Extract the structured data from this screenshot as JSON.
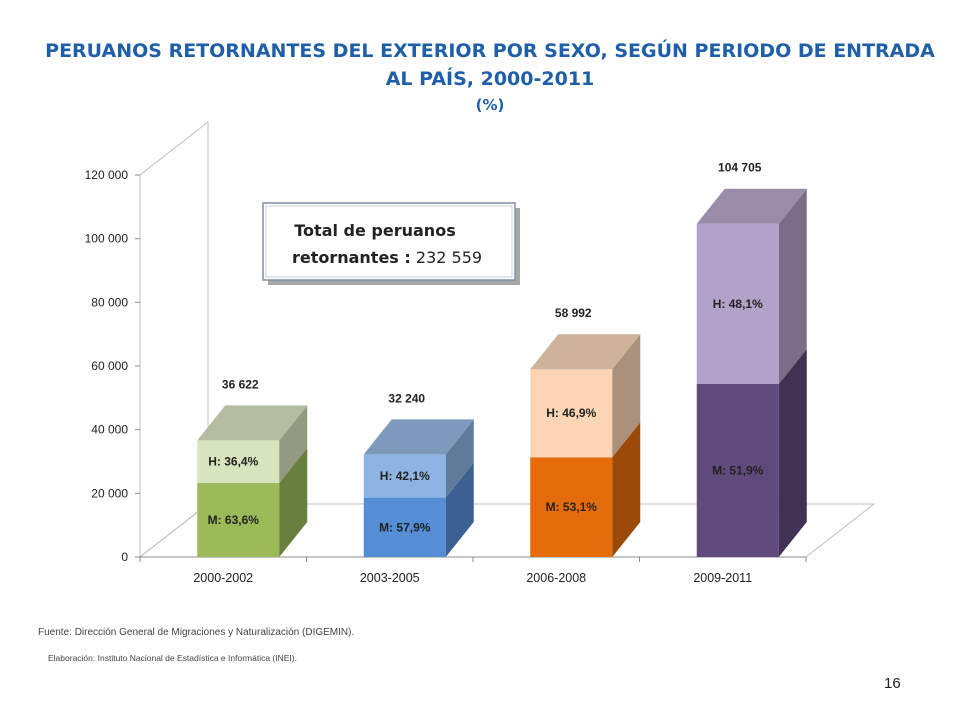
{
  "title": {
    "line1": "PERUANOS RETORNANTES DEL EXTERIOR POR SEXO, SEGÚN PERIODO DE ENTRADA",
    "line2": "AL PAÍS, 2000-2011",
    "line3": "(%)"
  },
  "chart_data": {
    "type": "bar",
    "stacked": true,
    "three_d": true,
    "categories": [
      "2000-2002",
      "2003-2005",
      "2006-2008",
      "2009-2011"
    ],
    "totals": [
      36622,
      32240,
      58992,
      104705
    ],
    "total_labels": [
      "36 622",
      "32 240",
      "58 992",
      "104 705"
    ],
    "series": [
      {
        "name": "M",
        "values": [
          23292,
          18667,
          31325,
          54342
        ],
        "labels": [
          "M: 63,6%",
          "M: 57,9%",
          "M: 53,1%",
          "M: 51,9%"
        ]
      },
      {
        "name": "H",
        "values": [
          13330,
          13573,
          27667,
          50363
        ],
        "labels": [
          "H: 36,4%",
          "H: 42,1%",
          "H: 46,9%",
          "H: 48,1%"
        ]
      }
    ],
    "ylim": [
      0,
      120000
    ],
    "yticks": [
      0,
      20000,
      40000,
      60000,
      80000,
      100000,
      120000
    ],
    "ytick_labels": [
      "0",
      "20 000",
      "40 000",
      "60 000",
      "80 000",
      "100 000",
      "120 000"
    ],
    "colors": {
      "M": [
        "#9bbb59",
        "#558ed5",
        "#e46c0a",
        "#604a7b"
      ],
      "H": [
        "#d7e4bd",
        "#8eb4e3",
        "#fcd5b5",
        "#b3a2c7"
      ]
    },
    "annotation": {
      "line1": "Total de peruanos",
      "line2_bold": "retornantes :",
      "line2_value": " 232 559"
    }
  },
  "footer": {
    "source": "Fuente: Dirección General de Migraciones y Naturalización (DIGEMIN).",
    "elaboration": "Elaboración: Instituto Nacional de Estadística e Informática (INEI)."
  },
  "page_number": "16"
}
